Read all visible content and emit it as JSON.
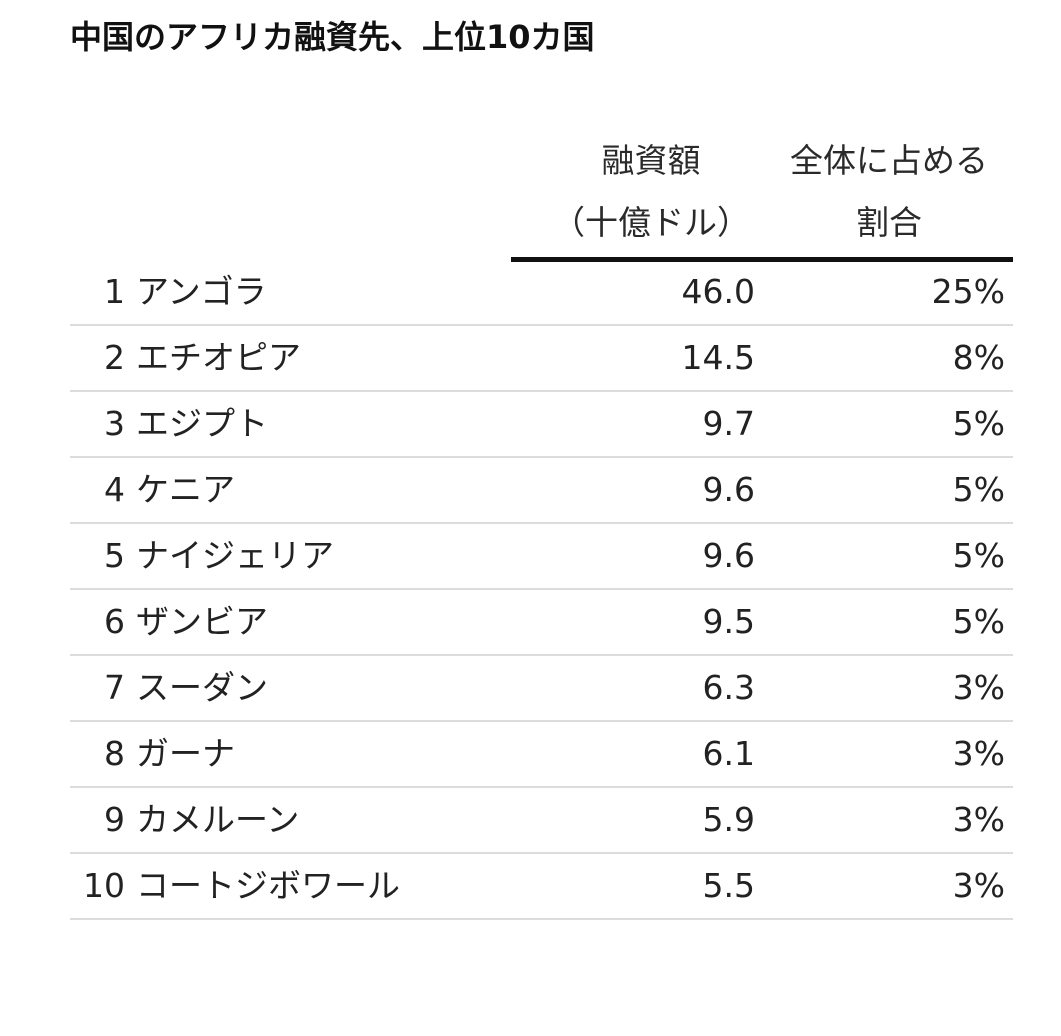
{
  "title": "中国のアフリカ融資先、上位10カ国",
  "chart_data": {
    "type": "table",
    "columns": [
      {
        "line1": "融資額",
        "line2": "（十億ドル）"
      },
      {
        "line1": "全体に占める",
        "line2": "割合"
      }
    ],
    "rows": [
      {
        "rank": "1",
        "country": "アンゴラ",
        "amount": "46.0",
        "share": "25%"
      },
      {
        "rank": "2",
        "country": "エチオピア",
        "amount": "14.5",
        "share": "8%"
      },
      {
        "rank": "3",
        "country": "エジプト",
        "amount": "9.7",
        "share": "5%"
      },
      {
        "rank": "4",
        "country": "ケニア",
        "amount": "9.6",
        "share": "5%"
      },
      {
        "rank": "5",
        "country": "ナイジェリア",
        "amount": "9.6",
        "share": "5%"
      },
      {
        "rank": "6",
        "country": "ザンビア",
        "amount": "9.5",
        "share": "5%"
      },
      {
        "rank": "7",
        "country": "スーダン",
        "amount": "6.3",
        "share": "3%"
      },
      {
        "rank": "8",
        "country": "ガーナ",
        "amount": "6.1",
        "share": "3%"
      },
      {
        "rank": "9",
        "country": "カメルーン",
        "amount": "5.9",
        "share": "3%"
      },
      {
        "rank": "10",
        "country": "コートジボワール",
        "amount": "5.5",
        "share": "3%"
      }
    ]
  }
}
